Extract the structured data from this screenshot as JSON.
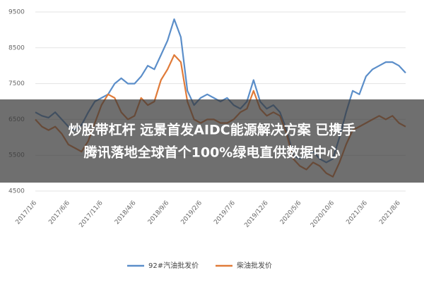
{
  "chart_data": {
    "type": "line",
    "categories": [
      "2017/1/6",
      null,
      null,
      null,
      null,
      "2017/6/6",
      null,
      null,
      null,
      null,
      "2017/11/6",
      null,
      null,
      null,
      null,
      "2018/4/6",
      null,
      null,
      null,
      null,
      "2018/9/6",
      null,
      null,
      null,
      null,
      "2019/2/6",
      null,
      null,
      null,
      null,
      "2019/7/6",
      null,
      null,
      null,
      null,
      "2019/12/6",
      null,
      null,
      null,
      null,
      "2020/5/6",
      null,
      null,
      null,
      null,
      "2020/10/6",
      null,
      null,
      null,
      null,
      "2021/3/6",
      null,
      null,
      null,
      null,
      "2021/8/6",
      null
    ],
    "series": [
      {
        "name": "92#汽油批发价",
        "color": "#5b8ec9",
        "values": [
          6700,
          6600,
          6550,
          6700,
          6500,
          6300,
          6200,
          6350,
          6700,
          7000,
          7100,
          7200,
          7500,
          7650,
          7500,
          7500,
          7700,
          8000,
          7900,
          8300,
          8700,
          9300,
          8800,
          7300,
          6900,
          7100,
          7200,
          7100,
          7000,
          7100,
          6900,
          6800,
          7000,
          7600,
          7000,
          6800,
          6900,
          6700,
          6200,
          5500,
          5400,
          5500,
          5600,
          5400,
          5300,
          5400,
          6000,
          6700,
          7300,
          7200,
          7700,
          7900,
          8000,
          8100,
          8100,
          8000,
          7800
        ]
      },
      {
        "name": "柴油批发价",
        "color": "#e07b39",
        "values": [
          6500,
          6300,
          6200,
          6300,
          6100,
          5800,
          5700,
          5600,
          5900,
          6400,
          6900,
          7200,
          7100,
          6700,
          6500,
          6600,
          7100,
          6900,
          7000,
          7600,
          7900,
          8300,
          8100,
          7000,
          6500,
          6400,
          6500,
          6500,
          6400,
          6400,
          6500,
          6700,
          6800,
          7300,
          6800,
          6600,
          6700,
          6600,
          6100,
          5400,
          5200,
          5100,
          5300,
          5200,
          5000,
          4900,
          5300,
          5800,
          6200,
          6300,
          6400,
          6500,
          6600,
          6500,
          6600,
          6400,
          6300
        ]
      }
    ],
    "ylim": [
      4500,
      9500
    ],
    "yticks": [
      4500,
      5500,
      6500,
      7500,
      8500,
      9500
    ],
    "grid": true,
    "legend": "bottom"
  },
  "overlay": {
    "lines": [
      "炒股带杠杆 远景首发AIDC能源解决方案 已携手",
      "腾讯落地全球首个100%绿电直供数据中心"
    ]
  }
}
